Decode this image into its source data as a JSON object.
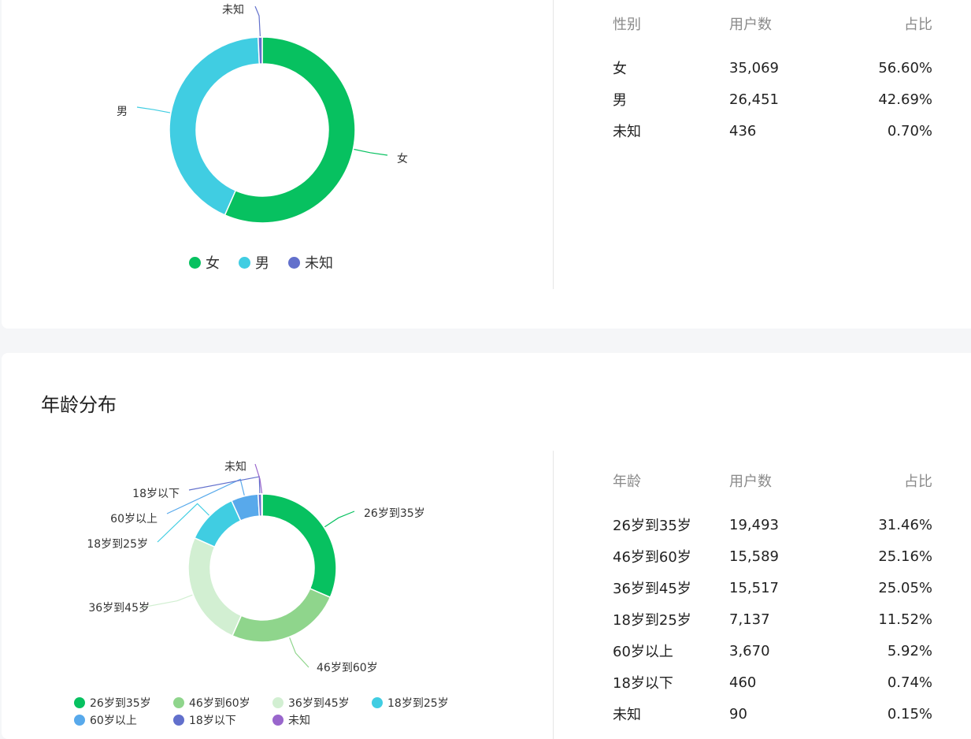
{
  "gender_section": {
    "legend": [
      {
        "label": "女",
        "color": "#07c160"
      },
      {
        "label": "男",
        "color": "#40cde2"
      },
      {
        "label": "未知",
        "color": "#6270cc"
      }
    ],
    "table": {
      "headers": [
        "性别",
        "用户数",
        "占比"
      ],
      "rows": [
        [
          "女",
          "35,069",
          "56.60%"
        ],
        [
          "男",
          "26,451",
          "42.69%"
        ],
        [
          "未知",
          "436",
          "0.70%"
        ]
      ]
    }
  },
  "age_section": {
    "title": "年龄分布",
    "legend": [
      {
        "label": "26岁到35岁",
        "color": "#07c160"
      },
      {
        "label": "46岁到60岁",
        "color": "#8fd58c"
      },
      {
        "label": "36岁到45岁",
        "color": "#d2efd2"
      },
      {
        "label": "18岁到25岁",
        "color": "#40cde2"
      },
      {
        "label": "60岁以上",
        "color": "#58a9eb"
      },
      {
        "label": "18岁以下",
        "color": "#6270cc"
      },
      {
        "label": "未知",
        "color": "#9966cc"
      }
    ],
    "table": {
      "headers": [
        "年龄",
        "用户数",
        "占比"
      ],
      "rows": [
        [
          "26岁到35岁",
          "19,493",
          "31.46%"
        ],
        [
          "46岁到60岁",
          "15,589",
          "25.16%"
        ],
        [
          "36岁到45岁",
          "15,517",
          "25.05%"
        ],
        [
          "18岁到25岁",
          "7,137",
          "11.52%"
        ],
        [
          "60岁以上",
          "3,670",
          "5.92%"
        ],
        [
          "18岁以下",
          "460",
          "0.74%"
        ],
        [
          "未知",
          "90",
          "0.15%"
        ]
      ]
    }
  },
  "chart_data": [
    {
      "type": "pie",
      "variant": "donut",
      "title": "",
      "categories": [
        "女",
        "男",
        "未知"
      ],
      "values": [
        35069,
        26451,
        436
      ],
      "colors": [
        "#07c160",
        "#40cde2",
        "#6270cc"
      ],
      "legend_position": "bottom-center"
    },
    {
      "type": "pie",
      "variant": "donut",
      "title": "年龄分布",
      "categories": [
        "26岁到35岁",
        "46岁到60岁",
        "36岁到45岁",
        "18岁到25岁",
        "60岁以上",
        "18岁以下",
        "未知"
      ],
      "values": [
        19493,
        15589,
        15517,
        7137,
        3670,
        460,
        90
      ],
      "colors": [
        "#07c160",
        "#8fd58c",
        "#d2efd2",
        "#40cde2",
        "#58a9eb",
        "#6270cc",
        "#9966cc"
      ],
      "legend_position": "bottom-left"
    }
  ]
}
